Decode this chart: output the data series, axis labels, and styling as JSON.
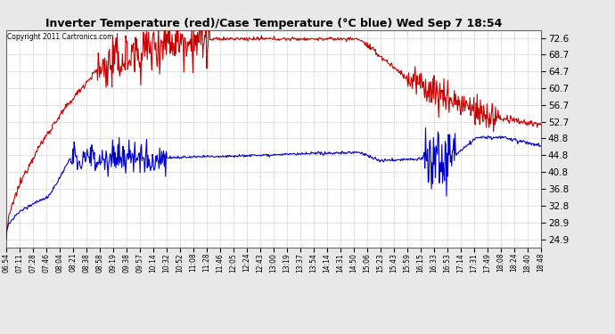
{
  "title": "Inverter Temperature (red)/Case Temperature (°C blue) Wed Sep 7 18:54",
  "copyright": "Copyright 2011 Cartronics.com",
  "yticks": [
    24.9,
    28.9,
    32.8,
    36.8,
    40.8,
    44.8,
    48.8,
    52.7,
    56.7,
    60.7,
    64.7,
    68.7,
    72.6
  ],
  "ylim": [
    23.0,
    74.5
  ],
  "xlabels": [
    "06:54",
    "07:11",
    "07:28",
    "07:46",
    "08:04",
    "08:21",
    "08:38",
    "08:58",
    "09:19",
    "09:38",
    "09:57",
    "10:14",
    "10:32",
    "10:52",
    "11:08",
    "11:28",
    "11:46",
    "12:05",
    "12:24",
    "12:43",
    "13:00",
    "13:19",
    "13:37",
    "13:54",
    "14:14",
    "14:31",
    "14:50",
    "15:06",
    "15:23",
    "15:43",
    "15:59",
    "16:15",
    "16:33",
    "16:53",
    "17:14",
    "17:31",
    "17:49",
    "18:08",
    "18:24",
    "18:40",
    "18:48"
  ],
  "background_color": "#e8e8e8",
  "plot_bg_color": "#ffffff",
  "grid_color": "#bbbbbb",
  "red_color": "#cc0000",
  "blue_color": "#0000cc",
  "figsize": [
    6.9,
    3.75
  ],
  "dpi": 100
}
